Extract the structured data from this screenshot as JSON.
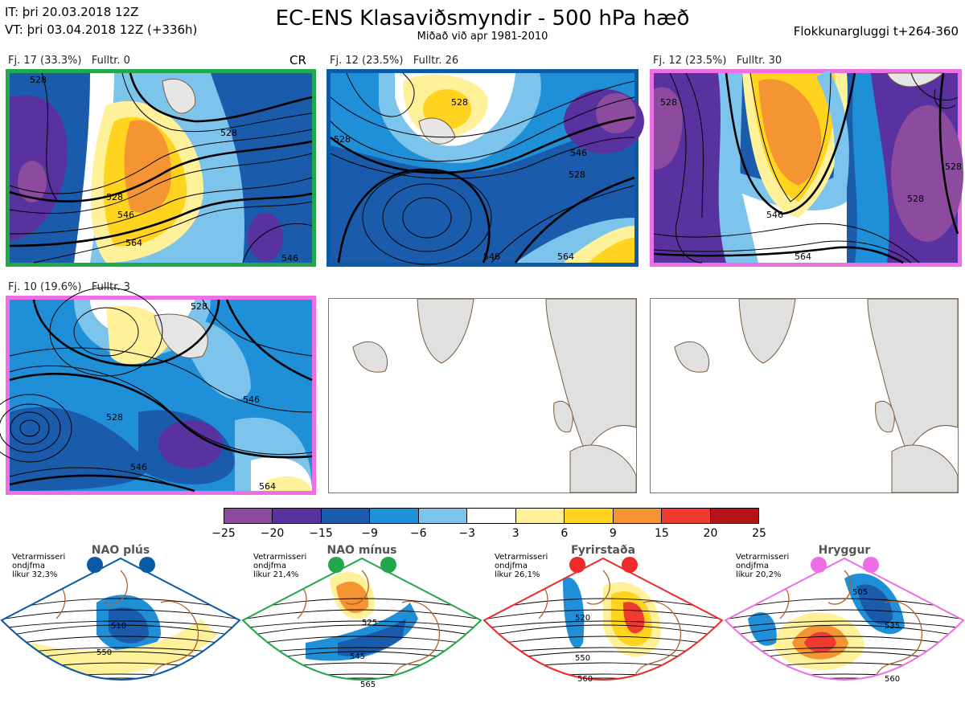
{
  "header": {
    "it": "IT: þri 20.03.2018 12Z",
    "vt": "VT: þri 03.04.2018 12Z  (+336h)",
    "title": "EC-ENS Klasaviðsmyndir - 500 hPa hæð",
    "subtitle": "Miðað við apr 1981-2010",
    "window": "Flokkunargluggi t+264-360"
  },
  "panels": [
    {
      "fj": "Fj. 17 (33.3%)",
      "fulltr": "Fulltr. 0",
      "tag": "CR",
      "border": "#22a84a"
    },
    {
      "fj": "Fj. 12 (23.5%)",
      "fulltr": "Fulltr. 26",
      "tag": "",
      "border": "#0a5aa5"
    },
    {
      "fj": "Fj. 12 (23.5%)",
      "fulltr": "Fulltr. 30",
      "tag": "",
      "border": "#ee6ee6"
    },
    {
      "fj": "Fj. 10 (19.6%)",
      "fulltr": "Fulltr. 3",
      "tag": "",
      "border": "#ee6ee6"
    }
  ],
  "contour_labels": {
    "p1": [
      "528",
      "528",
      "546",
      "564",
      "528",
      "546"
    ],
    "p2": [
      "528",
      "528",
      "546",
      "528",
      "546",
      "564"
    ],
    "p3": [
      "528",
      "546",
      "564",
      "528",
      "528"
    ],
    "p4": [
      "528",
      "528",
      "546",
      "546",
      "564"
    ]
  },
  "colorbar": {
    "colors": [
      "#8c4b9e",
      "#5a32a0",
      "#1a5cab",
      "#1f8fd8",
      "#7cc4ec",
      "#ffffff",
      "#fff19a",
      "#ffd31e",
      "#f49432",
      "#ee3a2f",
      "#b41318"
    ],
    "ticks": [
      "−25",
      "−20",
      "−15",
      "−9",
      "−6",
      "−3",
      "3",
      "6",
      "9",
      "15",
      "20",
      "25"
    ]
  },
  "regimes": [
    {
      "name": "NAO plús",
      "note": "Vetrarmisseri\nondjfma\nlíkur 32,3%",
      "labels": [
        "510",
        "550"
      ],
      "color": "#0a5aa5"
    },
    {
      "name": "NAO mínus",
      "note": "Vetrarmisseri\nondjfma\nlíkur 21,4%",
      "labels": [
        "525",
        "545",
        "565"
      ],
      "color": "#22a84a"
    },
    {
      "name": "Fyrirstaða",
      "note": "Vetrarmisseri\nondjfma\nlíkur 26,1%",
      "labels": [
        "520",
        "550",
        "560"
      ],
      "color": "#ee2a2a"
    },
    {
      "name": "Hryggur",
      "note": "Vetrarmisseri\nondjfma\nlíkur 20,2%",
      "labels": [
        "505",
        "535",
        "560"
      ],
      "color": "#ee6ee6"
    }
  ]
}
